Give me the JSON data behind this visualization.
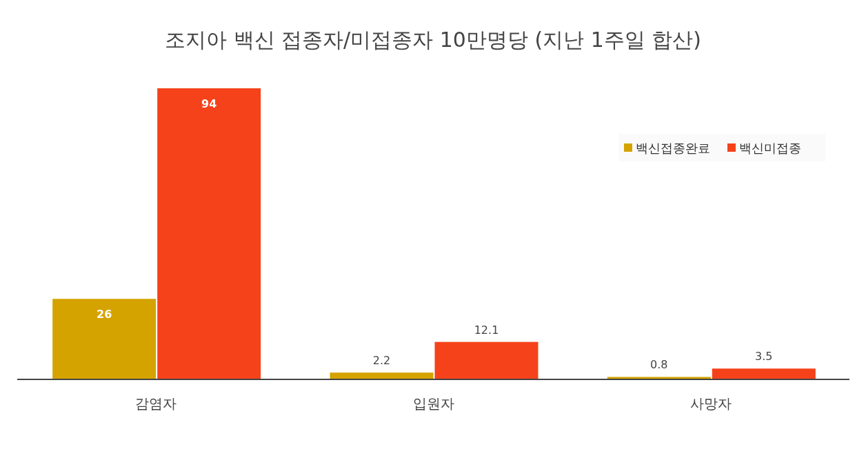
{
  "chart_data": {
    "type": "bar",
    "title": "조지아 백신 접종자/미접종자 10만명당 (지난 1주일 합산)",
    "categories": [
      "감염자",
      "입원자",
      "사망자"
    ],
    "series": [
      {
        "name": "백신접종완료",
        "color": "#d4a300",
        "values": [
          26,
          2.2,
          0.8
        ]
      },
      {
        "name": "백신미접종",
        "color": "#f5421a",
        "values": [
          94,
          12.1,
          3.5
        ]
      }
    ],
    "data_labels": true,
    "legend": "top right"
  }
}
